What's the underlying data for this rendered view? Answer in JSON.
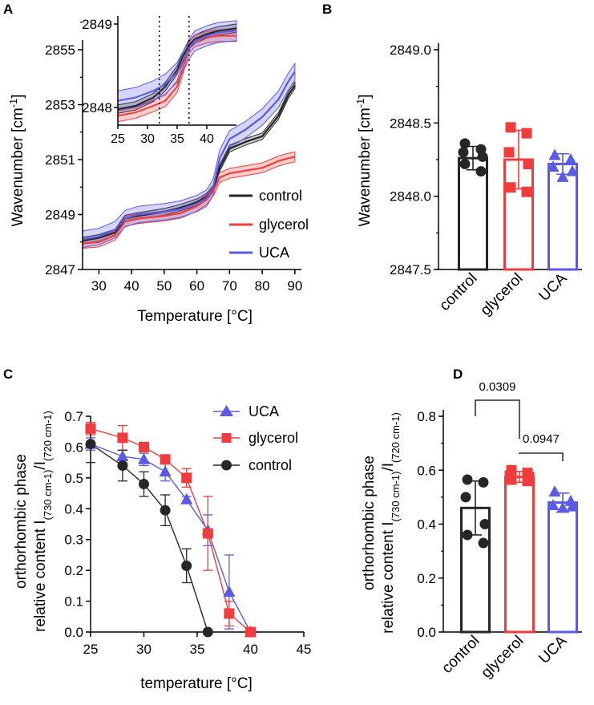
{
  "panels": {
    "A": "A",
    "B": "B",
    "C": "C",
    "D": "D"
  },
  "colors": {
    "control": "#262626",
    "glycerol": "#f03c3c",
    "UCA": "#5a5ae6"
  },
  "chart_data": [
    {
      "id": "A",
      "type": "line",
      "xlabel": "Temperature [°C]",
      "ylabel": "Wavenumber [cm",
      "ylabel_sup": "-1",
      "ylabel_end": "]",
      "xlim": [
        25,
        92
      ],
      "ylim": [
        2847,
        2856
      ],
      "xticks": [
        "30",
        "40",
        "50",
        "60",
        "70",
        "80",
        "90"
      ],
      "xtick_values": [
        30,
        40,
        50,
        60,
        70,
        80,
        90
      ],
      "yticks": [
        "2847",
        "2849",
        "2851",
        "2853",
        "2855"
      ],
      "ytick_values": [
        2847,
        2849,
        2851,
        2853,
        2855
      ],
      "legend": [
        "control",
        "glycerol",
        "UCA"
      ],
      "series": [
        {
          "name": "control",
          "x": [
            25,
            30,
            35,
            38,
            42,
            50,
            55,
            60,
            63,
            65,
            67,
            70,
            75,
            80,
            85,
            88,
            90
          ],
          "y": [
            2848.05,
            2848.15,
            2848.35,
            2848.85,
            2848.95,
            2849.1,
            2849.25,
            2849.45,
            2849.65,
            2849.95,
            2850.7,
            2851.4,
            2851.65,
            2851.85,
            2852.6,
            2853.35,
            2853.7
          ],
          "err": 0.12
        },
        {
          "name": "glycerol",
          "x": [
            25,
            30,
            35,
            38,
            42,
            50,
            55,
            60,
            63,
            65,
            67,
            70,
            75,
            80,
            85,
            88,
            90
          ],
          "y": [
            2847.95,
            2848.0,
            2848.25,
            2848.75,
            2848.85,
            2848.95,
            2849.05,
            2849.3,
            2849.55,
            2849.85,
            2850.35,
            2850.5,
            2850.6,
            2850.7,
            2850.95,
            2851.05,
            2851.1
          ],
          "err": 0.18
        },
        {
          "name": "UCA",
          "x": [
            25,
            30,
            35,
            38,
            42,
            50,
            55,
            60,
            63,
            65,
            67,
            70,
            75,
            80,
            85,
            88,
            90
          ],
          "y": [
            2848.1,
            2848.2,
            2848.45,
            2848.85,
            2849.0,
            2849.1,
            2849.2,
            2849.4,
            2849.6,
            2850.0,
            2851.05,
            2851.75,
            2852.1,
            2852.55,
            2853.2,
            2853.85,
            2854.2
          ],
          "err": 0.3
        }
      ],
      "inset": {
        "xlim": [
          25,
          45
        ],
        "ylim": [
          2847.75,
          2849.1
        ],
        "xticks": [
          "25",
          "30",
          "35",
          "40"
        ],
        "xtick_values": [
          25,
          30,
          35,
          40
        ],
        "yticks": [
          "2848",
          "2849"
        ],
        "ytick_values": [
          2848,
          2849
        ],
        "vlines": [
          32,
          37
        ],
        "series": [
          {
            "name": "control",
            "x": [
              25,
              28,
              31,
              33,
              35,
              36,
              37,
              38,
              40,
              42,
              45
            ],
            "y": [
              2847.98,
              2848.02,
              2848.12,
              2848.25,
              2848.45,
              2848.62,
              2848.75,
              2848.82,
              2848.88,
              2848.92,
              2848.95
            ],
            "err": 0.05
          },
          {
            "name": "glycerol",
            "x": [
              25,
              28,
              31,
              33,
              35,
              36,
              37,
              38,
              40,
              42,
              45
            ],
            "y": [
              2847.9,
              2847.94,
              2848.02,
              2848.08,
              2848.25,
              2848.48,
              2848.72,
              2848.8,
              2848.84,
              2848.86,
              2848.86
            ],
            "err": 0.07
          },
          {
            "name": "UCA",
            "x": [
              25,
              28,
              31,
              33,
              35,
              36,
              37,
              38,
              40,
              42,
              45
            ],
            "y": [
              2848.08,
              2848.12,
              2848.2,
              2848.28,
              2848.42,
              2848.55,
              2848.7,
              2848.8,
              2848.86,
              2848.9,
              2848.92
            ],
            "err": 0.12
          }
        ]
      }
    },
    {
      "id": "B",
      "type": "bar",
      "ylabel": "Wavenumber [cm",
      "ylabel_sup": "-1",
      "ylabel_end": "]",
      "ylim": [
        2847.5,
        2849.0
      ],
      "yticks": [
        "2847.5",
        "2848.0",
        "2848.5",
        "2849.0"
      ],
      "ytick_values": [
        2847.5,
        2848.0,
        2848.5,
        2849.0
      ],
      "categories": [
        "control",
        "glycerol",
        "UCA"
      ],
      "values": [
        2848.26,
        2848.25,
        2848.22
      ],
      "errors": [
        0.08,
        0.2,
        0.07
      ],
      "markers": [
        "circle",
        "square",
        "triangle"
      ],
      "points": [
        [
          2848.36,
          2848.32,
          2848.3,
          2848.27,
          2848.22,
          2848.17
        ],
        [
          2848.47,
          2848.43,
          2848.3,
          2848.22,
          2848.06,
          2848.03
        ],
        [
          2848.28,
          2848.25,
          2848.2,
          2848.17,
          2848.13
        ]
      ]
    },
    {
      "id": "C",
      "type": "line",
      "xlabel": "temperature [°C]",
      "ylabel_top": "orthorhombic phase",
      "ylabel_bottom": "relative content I",
      "ylabel_sub1": "(730 cm-1)",
      "ylabel_mid": "/I",
      "ylabel_sub2": "(720 cm-1)",
      "xlim": [
        25,
        45
      ],
      "ylim": [
        0.0,
        0.7
      ],
      "xticks": [
        "25",
        "30",
        "35",
        "40",
        "45"
      ],
      "xtick_values": [
        25,
        30,
        35,
        40,
        45
      ],
      "yticks": [
        "0.0",
        "0.1",
        "0.2",
        "0.3",
        "0.4",
        "0.5",
        "0.6",
        "0.7"
      ],
      "ytick_values": [
        0.0,
        0.1,
        0.2,
        0.3,
        0.4,
        0.5,
        0.6,
        0.7
      ],
      "legend": [
        "UCA",
        "glycerol",
        "control"
      ],
      "series": [
        {
          "name": "UCA",
          "marker": "triangle",
          "x": [
            25,
            28,
            30,
            32,
            34,
            36,
            38,
            40
          ],
          "y": [
            0.61,
            0.57,
            0.56,
            0.52,
            0.43,
            0.33,
            0.13,
            0.0
          ],
          "err": [
            0.02,
            0.02,
            0.02,
            0.03,
            0.01,
            0.05,
            0.12,
            0.0
          ]
        },
        {
          "name": "glycerol",
          "marker": "square",
          "x": [
            25,
            28,
            30,
            32,
            34,
            36,
            38,
            40
          ],
          "y": [
            0.66,
            0.63,
            0.6,
            0.56,
            0.5,
            0.32,
            0.06,
            0.0
          ],
          "err": [
            0.02,
            0.04,
            0.01,
            0.01,
            0.03,
            0.12,
            0.04,
            0.0
          ]
        },
        {
          "name": "control",
          "marker": "circle",
          "x": [
            25,
            28,
            30,
            32,
            34,
            36
          ],
          "y": [
            0.61,
            0.54,
            0.48,
            0.395,
            0.215,
            0.0
          ],
          "err": [
            0.06,
            0.05,
            0.04,
            0.05,
            0.055,
            0.0
          ]
        }
      ]
    },
    {
      "id": "D",
      "type": "bar",
      "ylabel_top": "orthorhombic phase",
      "ylabel_bottom": "relative content I",
      "ylabel_sub1": "(730 cm-1)",
      "ylabel_mid": "/I",
      "ylabel_sub2": "(720 cm-1)",
      "ylim": [
        0.0,
        0.8
      ],
      "yticks": [
        "0.0",
        "0.2",
        "0.4",
        "0.6",
        "0.8"
      ],
      "ytick_values": [
        0.0,
        0.2,
        0.4,
        0.6,
        0.8
      ],
      "categories": [
        "control",
        "glycerol",
        "UCA"
      ],
      "values": [
        0.46,
        0.575,
        0.48
      ],
      "errors": [
        0.1,
        0.02,
        0.035
      ],
      "markers": [
        "circle",
        "square",
        "triangle"
      ],
      "points": [
        [
          0.565,
          0.555,
          0.5,
          0.4,
          0.36,
          0.33
        ],
        [
          0.6,
          0.59,
          0.58,
          0.575,
          0.565,
          0.56
        ],
        [
          0.52,
          0.485,
          0.47,
          0.465,
          0.46
        ]
      ],
      "brackets": [
        {
          "from": 0,
          "to": 1,
          "label": "0.0309"
        },
        {
          "from": 1,
          "to": 2,
          "label": "0.0947"
        }
      ]
    }
  ]
}
